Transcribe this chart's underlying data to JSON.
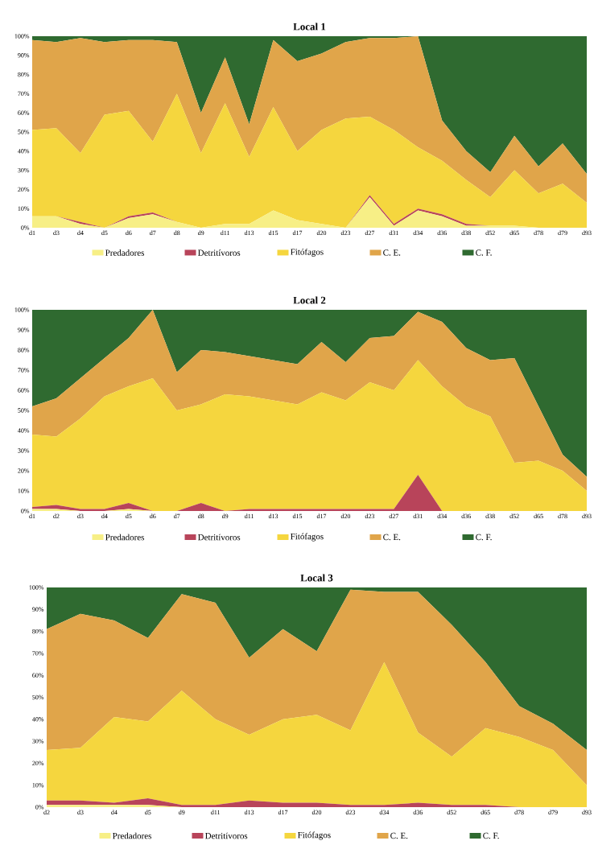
{
  "chart_data": [
    {
      "type": "area",
      "title": "Local 1",
      "stacked": true,
      "legend": "bottom",
      "categories": [
        "d1",
        "d3",
        "d4",
        "d5",
        "d6",
        "d7",
        "d8",
        "d9",
        "d11",
        "d13",
        "d15",
        "d17",
        "d20",
        "d23",
        "d27",
        "d31",
        "d34",
        "d36",
        "d38",
        "d52",
        "d65",
        "d78",
        "d79",
        "d93"
      ],
      "ylim": [
        0,
        100
      ],
      "yticks": [
        {
          "value": 0,
          "label": "0%"
        },
        {
          "value": 10,
          "label": "10%"
        },
        {
          "value": 20,
          "label": "20%"
        },
        {
          "value": 30,
          "label": "30%"
        },
        {
          "value": 40,
          "label": "40%"
        },
        {
          "value": 50,
          "label": "50%"
        },
        {
          "value": 60,
          "label": "60%"
        },
        {
          "value": 70,
          "label": "70%"
        },
        {
          "value": 80,
          "label": "80%"
        },
        {
          "value": 90,
          "label": "90%"
        },
        {
          "value": 100,
          "label": "100%"
        }
      ],
      "series": [
        {
          "name": "Predadores",
          "color": "#f7ef86",
          "values": [
            6,
            6,
            2,
            0,
            5,
            7,
            3,
            0,
            2,
            2,
            9,
            4,
            2,
            0,
            16,
            1,
            9,
            6,
            1,
            1,
            1,
            0,
            0,
            0
          ]
        },
        {
          "name": "Detritívoros",
          "color": "#b8445a",
          "values": [
            0,
            0,
            1,
            0,
            1,
            1,
            0,
            0,
            0,
            0,
            0,
            0,
            0,
            0,
            1,
            1,
            1,
            1,
            1,
            0,
            0,
            0,
            0,
            0
          ]
        },
        {
          "name": "Fitófagos",
          "color": "#f5d63e",
          "values": [
            45,
            46,
            36,
            59,
            55,
            37,
            67,
            39,
            63,
            35,
            54,
            36,
            49,
            57,
            41,
            49,
            32,
            28,
            23,
            15,
            29,
            18,
            23,
            13
          ]
        },
        {
          "name": "C. E.",
          "color": "#e0a54a",
          "values": [
            47,
            45,
            60,
            38,
            37,
            53,
            27,
            21,
            24,
            17,
            35,
            47,
            40,
            40,
            41,
            48,
            58,
            21,
            15,
            13,
            18,
            14,
            21,
            15
          ]
        },
        {
          "name": "C. F.",
          "color": "#2f6a30",
          "values": [
            2,
            3,
            1,
            3,
            2,
            2,
            3,
            40,
            11,
            46,
            2,
            13,
            9,
            3,
            1,
            1,
            0,
            44,
            60,
            71,
            52,
            68,
            56,
            72
          ]
        }
      ]
    },
    {
      "type": "area",
      "title": "Local 2",
      "stacked": true,
      "legend": "bottom",
      "categories": [
        "d1",
        "d2",
        "d3",
        "d4",
        "d5",
        "d6",
        "d7",
        "d8",
        "d9",
        "d11",
        "d13",
        "d15",
        "d17",
        "d20",
        "d23",
        "d27",
        "d31",
        "d34",
        "d36",
        "d38",
        "d52",
        "d65",
        "d78",
        "d93"
      ],
      "ylim": [
        0,
        100
      ],
      "yticks": [
        {
          "value": 0,
          "label": "0%"
        },
        {
          "value": 10,
          "label": "10%"
        },
        {
          "value": 20,
          "label": "20%"
        },
        {
          "value": 30,
          "label": "30%"
        },
        {
          "value": 40,
          "label": "40%"
        },
        {
          "value": 50,
          "label": "50%"
        },
        {
          "value": 60,
          "label": "60%"
        },
        {
          "value": 70,
          "label": "70%"
        },
        {
          "value": 80,
          "label": "80%"
        },
        {
          "value": 90,
          "label": "90%"
        },
        {
          "value": 100,
          "label": "100%"
        }
      ],
      "series": [
        {
          "name": "Predadores",
          "color": "#f7ef86",
          "values": [
            1,
            1,
            0,
            0,
            1,
            0,
            0,
            0,
            0,
            0,
            0,
            0,
            0,
            0,
            0,
            0,
            0,
            0,
            0,
            0,
            0,
            0,
            0,
            0
          ]
        },
        {
          "name": "Detritívoros",
          "color": "#b8445a",
          "values": [
            1,
            2,
            1,
            1,
            3,
            0,
            0,
            4,
            0,
            1,
            1,
            1,
            1,
            1,
            1,
            1,
            18,
            0,
            0,
            0,
            0,
            0,
            0,
            0
          ]
        },
        {
          "name": "Fitófagos",
          "color": "#f5d63e",
          "values": [
            36,
            34,
            45,
            56,
            58,
            66,
            50,
            49,
            58,
            56,
            54,
            52,
            58,
            54,
            63,
            59,
            57,
            62,
            52,
            47,
            24,
            25,
            20,
            10
          ]
        },
        {
          "name": "C. E.",
          "color": "#e0a54a",
          "values": [
            14,
            19,
            20,
            19,
            24,
            34,
            19,
            27,
            21,
            20,
            20,
            20,
            25,
            19,
            22,
            27,
            24,
            32,
            29,
            28,
            52,
            27,
            8,
            7
          ]
        },
        {
          "name": "C. F.",
          "color": "#2f6a30",
          "values": [
            48,
            44,
            34,
            24,
            14,
            0,
            31,
            20,
            21,
            23,
            25,
            27,
            16,
            26,
            14,
            13,
            1,
            6,
            19,
            25,
            24,
            48,
            72,
            83
          ]
        }
      ]
    },
    {
      "type": "area",
      "title": "Local 3",
      "stacked": true,
      "legend": "bottom",
      "categories": [
        "d2",
        "d3",
        "d4",
        "d5",
        "d9",
        "d11",
        "d13",
        "d17",
        "d20",
        "d23",
        "d34",
        "d36",
        "d52",
        "d65",
        "d78",
        "d79",
        "d93"
      ],
      "ylim": [
        0,
        100
      ],
      "yticks": [
        {
          "value": 0,
          "label": "0%"
        },
        {
          "value": 10,
          "label": "10%"
        },
        {
          "value": 20,
          "label": "20%"
        },
        {
          "value": 30,
          "label": "30%"
        },
        {
          "value": 40,
          "label": "40%"
        },
        {
          "value": 50,
          "label": "50%"
        },
        {
          "value": 60,
          "label": "60%"
        },
        {
          "value": 70,
          "label": "70%"
        },
        {
          "value": 80,
          "label": "80%"
        },
        {
          "value": 90,
          "label": "90%"
        },
        {
          "value": 100,
          "label": "100%"
        }
      ],
      "series": [
        {
          "name": "Predadores",
          "color": "#f7ef86",
          "values": [
            1,
            1,
            1,
            1,
            0,
            0,
            0,
            0,
            0,
            0,
            0,
            0,
            0,
            0,
            0,
            0,
            0
          ]
        },
        {
          "name": "Detritívoros",
          "color": "#b8445a",
          "values": [
            2,
            2,
            1,
            3,
            1,
            1,
            3,
            2,
            2,
            1,
            1,
            2,
            1,
            1,
            0,
            0,
            0
          ]
        },
        {
          "name": "Fitófagos",
          "color": "#f5d63e",
          "values": [
            23,
            24,
            39,
            35,
            52,
            39,
            30,
            38,
            40,
            34,
            65,
            32,
            22,
            35,
            32,
            26,
            10
          ]
        },
        {
          "name": "C. E.",
          "color": "#e0a54a",
          "values": [
            55,
            61,
            44,
            38,
            44,
            53,
            35,
            41,
            29,
            64,
            32,
            64,
            60,
            30,
            14,
            12,
            16
          ]
        },
        {
          "name": "C. F.",
          "color": "#2f6a30",
          "values": [
            19,
            12,
            15,
            23,
            3,
            7,
            32,
            19,
            29,
            1,
            2,
            2,
            17,
            34,
            54,
            62,
            74
          ]
        }
      ]
    }
  ]
}
